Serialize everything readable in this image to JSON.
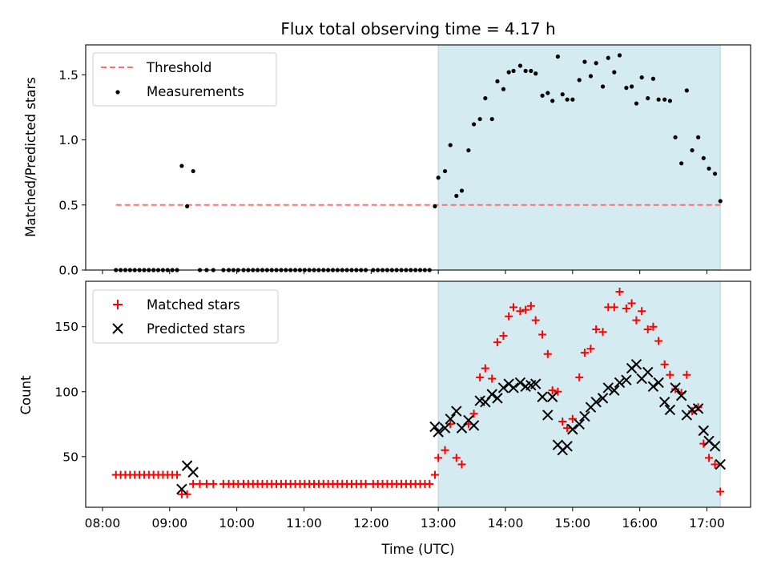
{
  "chart_data": [
    {
      "type": "scatter",
      "title": "Flux total observing time = 4.17 h",
      "xlabel": "",
      "ylabel": "Matched/Predicted stars",
      "xlim": [
        7.75,
        17.65
      ],
      "ylim": [
        0,
        1.73
      ],
      "yticks": [
        0.0,
        0.5,
        1.0,
        1.5
      ],
      "ytick_labels": [
        "0.0",
        "0.5",
        "1.0",
        "1.5"
      ],
      "threshold": {
        "name": "Threshold",
        "value": 0.5,
        "x": [
          8.2,
          17.2
        ],
        "color": "#ff7070"
      },
      "shaded": {
        "x": [
          13.0,
          17.2
        ],
        "color": "#d4ebf1"
      },
      "legend": [
        "Threshold",
        "Measurements"
      ],
      "legend_position": "upper left",
      "series": [
        {
          "name": "Measurements",
          "color": "#000000",
          "x": [
            8.2,
            8.27,
            8.34,
            8.41,
            8.48,
            8.55,
            8.62,
            8.69,
            8.76,
            8.83,
            8.9,
            8.97,
            9.04,
            9.11,
            9.18,
            9.26,
            9.35,
            9.45,
            9.55,
            9.65,
            9.8,
            9.88,
            9.95,
            10.02,
            10.1,
            10.17,
            10.24,
            10.31,
            10.38,
            10.45,
            10.52,
            10.59,
            10.66,
            10.73,
            10.8,
            10.87,
            10.94,
            11.01,
            11.08,
            11.15,
            11.22,
            11.29,
            11.36,
            11.43,
            11.5,
            11.57,
            11.64,
            11.71,
            11.78,
            11.85,
            11.92,
            12.03,
            12.1,
            12.17,
            12.24,
            12.31,
            12.38,
            12.45,
            12.52,
            12.59,
            12.66,
            12.73,
            12.8,
            12.87,
            12.95,
            13.0,
            13.1,
            13.18,
            13.27,
            13.35,
            13.45,
            13.53,
            13.62,
            13.7,
            13.8,
            13.88,
            13.97,
            14.05,
            14.12,
            14.22,
            14.3,
            14.38,
            14.45,
            14.55,
            14.63,
            14.7,
            14.78,
            14.85,
            14.92,
            15.0,
            15.1,
            15.18,
            15.27,
            15.35,
            15.45,
            15.53,
            15.62,
            15.7,
            15.8,
            15.88,
            15.95,
            16.03,
            16.12,
            16.2,
            16.28,
            16.37,
            16.45,
            16.53,
            16.62,
            16.7,
            16.78,
            16.87,
            16.95,
            17.03,
            17.12,
            17.2
          ],
          "y": [
            0,
            0,
            0,
            0,
            0,
            0,
            0,
            0,
            0,
            0,
            0,
            0,
            0,
            0,
            0.8,
            0.49,
            0.76,
            0,
            0,
            0,
            0,
            0,
            0,
            0,
            0,
            0,
            0,
            0,
            0,
            0,
            0,
            0,
            0,
            0,
            0,
            0,
            0,
            0,
            0,
            0,
            0,
            0,
            0,
            0,
            0,
            0,
            0,
            0,
            0,
            0,
            0,
            0,
            0,
            0,
            0,
            0,
            0,
            0,
            0,
            0,
            0,
            0,
            0,
            0,
            0.49,
            0.71,
            0.76,
            0.96,
            0.57,
            0.61,
            0.92,
            1.12,
            1.16,
            1.32,
            1.16,
            1.45,
            1.39,
            1.52,
            1.53,
            1.57,
            1.53,
            1.53,
            1.51,
            1.34,
            1.36,
            1.3,
            1.64,
            1.35,
            1.31,
            1.31,
            1.46,
            1.6,
            1.49,
            1.59,
            1.41,
            1.63,
            1.52,
            1.65,
            1.4,
            1.41,
            1.28,
            1.48,
            1.32,
            1.47,
            1.31,
            1.31,
            1.3,
            1.02,
            0.82,
            1.38,
            0.92,
            1.02,
            0.86,
            0.78,
            0.74,
            0.53
          ]
        }
      ]
    },
    {
      "type": "scatter",
      "title": "",
      "xlabel": "Time (UTC)",
      "ylabel": "Count",
      "xlim": [
        7.75,
        17.65
      ],
      "ylim": [
        11,
        185
      ],
      "yticks": [
        50,
        100,
        150
      ],
      "ytick_labels": [
        "50",
        "100",
        "150"
      ],
      "xticks": [
        8,
        9,
        10,
        11,
        12,
        13,
        14,
        15,
        16,
        17
      ],
      "xtick_labels": [
        "08:00",
        "09:00",
        "10:00",
        "11:00",
        "12:00",
        "13:00",
        "14:00",
        "15:00",
        "16:00",
        "17:00"
      ],
      "shaded": {
        "x": [
          13.0,
          17.2
        ],
        "color": "#d4ebf1"
      },
      "legend": [
        "Matched stars",
        "Predicted stars"
      ],
      "legend_position": "upper left",
      "series": [
        {
          "name": "Matched stars",
          "marker": "+",
          "color": "#ff0000",
          "x": [
            8.2,
            8.27,
            8.34,
            8.41,
            8.48,
            8.55,
            8.62,
            8.69,
            8.76,
            8.83,
            8.9,
            8.97,
            9.04,
            9.11,
            9.18,
            9.26,
            9.35,
            9.45,
            9.55,
            9.65,
            9.8,
            9.88,
            9.95,
            10.02,
            10.1,
            10.17,
            10.24,
            10.31,
            10.38,
            10.45,
            10.52,
            10.59,
            10.66,
            10.73,
            10.8,
            10.87,
            10.94,
            11.01,
            11.08,
            11.15,
            11.22,
            11.29,
            11.36,
            11.43,
            11.5,
            11.57,
            11.64,
            11.71,
            11.78,
            11.85,
            11.92,
            12.03,
            12.1,
            12.17,
            12.24,
            12.31,
            12.38,
            12.45,
            12.52,
            12.59,
            12.66,
            12.73,
            12.8,
            12.87,
            12.95,
            13.0,
            13.1,
            13.18,
            13.27,
            13.35,
            13.45,
            13.53,
            13.62,
            13.7,
            13.8,
            13.88,
            13.97,
            14.05,
            14.12,
            14.22,
            14.3,
            14.38,
            14.45,
            14.55,
            14.63,
            14.7,
            14.78,
            14.85,
            14.92,
            15.0,
            15.1,
            15.18,
            15.27,
            15.35,
            15.45,
            15.53,
            15.62,
            15.7,
            15.8,
            15.88,
            15.95,
            16.03,
            16.12,
            16.2,
            16.28,
            16.37,
            16.45,
            16.53,
            16.62,
            16.7,
            16.78,
            16.87,
            16.95,
            17.03,
            17.12,
            17.2
          ],
          "y": [
            36,
            36,
            36,
            36,
            36,
            36,
            36,
            36,
            36,
            36,
            36,
            36,
            36,
            36,
            21,
            21,
            29,
            29,
            29,
            29,
            29,
            29,
            29,
            29,
            29,
            29,
            29,
            29,
            29,
            29,
            29,
            29,
            29,
            29,
            29,
            29,
            29,
            29,
            29,
            29,
            29,
            29,
            29,
            29,
            29,
            29,
            29,
            29,
            29,
            29,
            29,
            29,
            29,
            29,
            29,
            29,
            29,
            29,
            29,
            29,
            29,
            29,
            29,
            29,
            36,
            49,
            55,
            75,
            49,
            44,
            75,
            83,
            111,
            118,
            110,
            138,
            143,
            158,
            165,
            162,
            163,
            166,
            155,
            144,
            129,
            101,
            100,
            77,
            72,
            79,
            111,
            130,
            133,
            148,
            146,
            165,
            165,
            177,
            164,
            168,
            155,
            162,
            148,
            150,
            139,
            121,
            113,
            102,
            99,
            113,
            85,
            88,
            60,
            49,
            44,
            23
          ]
        },
        {
          "name": "Predicted stars",
          "marker": "x",
          "color": "#000000",
          "x": [
            9.18,
            9.26,
            9.35,
            12.95,
            13.0,
            13.1,
            13.18,
            13.27,
            13.35,
            13.45,
            13.53,
            13.62,
            13.7,
            13.8,
            13.88,
            13.97,
            14.05,
            14.12,
            14.22,
            14.3,
            14.38,
            14.45,
            14.55,
            14.63,
            14.7,
            14.78,
            14.85,
            14.92,
            15.0,
            15.1,
            15.18,
            15.27,
            15.35,
            15.45,
            15.53,
            15.62,
            15.7,
            15.8,
            15.88,
            15.95,
            16.03,
            16.12,
            16.2,
            16.28,
            16.37,
            16.45,
            16.53,
            16.62,
            16.7,
            16.78,
            16.87,
            16.95,
            17.03,
            17.12,
            17.2
          ],
          "y": [
            25,
            43,
            38,
            73,
            69,
            72,
            79,
            85,
            72,
            78,
            74,
            93,
            92,
            98,
            95,
            103,
            106,
            103,
            107,
            104,
            105,
            106,
            96,
            82,
            96,
            59,
            55,
            58,
            71,
            75,
            81,
            88,
            92,
            95,
            103,
            101,
            107,
            109,
            118,
            121,
            110,
            115,
            104,
            107,
            92,
            86,
            103,
            97,
            82,
            86,
            87,
            70,
            62,
            58,
            44
          ]
        }
      ]
    }
  ]
}
